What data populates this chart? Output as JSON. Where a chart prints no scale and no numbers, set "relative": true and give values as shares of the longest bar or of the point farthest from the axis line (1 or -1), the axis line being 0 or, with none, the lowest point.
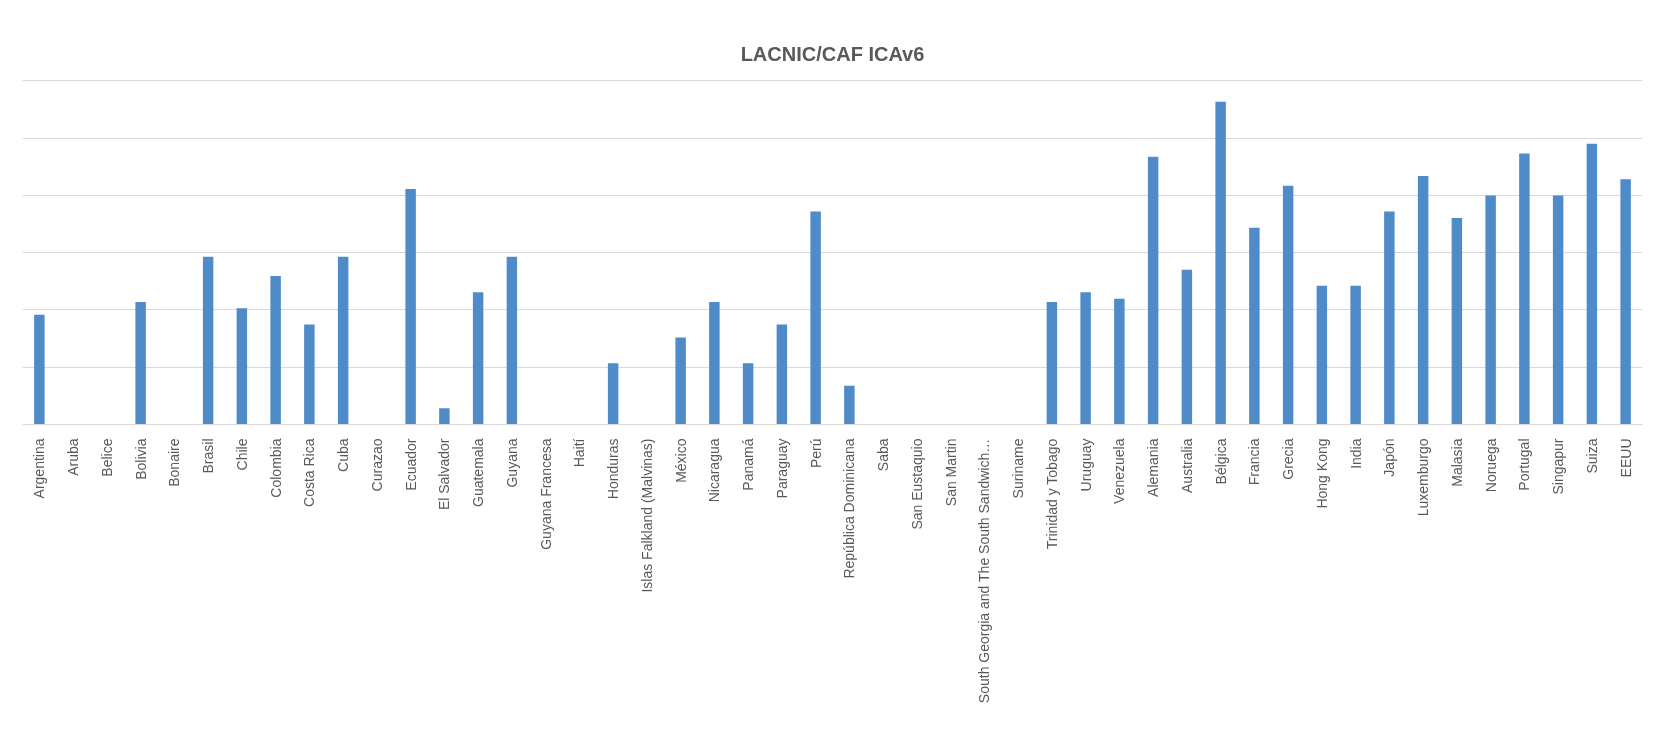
{
  "chart_data": {
    "type": "bar",
    "title": "LACNIC/CAF ICAv6",
    "relative": true,
    "grid": "y",
    "color": "#4f8bc9",
    "categories": [
      "Argentina",
      "Aruba",
      "Belice",
      "Bolivia",
      "Bonaire",
      "Brasil",
      "Chile",
      "Colombia",
      "Costa Rica",
      "Cuba",
      "Curazao",
      "Ecuador",
      "El Salvador",
      "Guatemala",
      "Guyana",
      "Guyana Francesa",
      "Haití",
      "Honduras",
      "Islas Falkland (Malvinas)",
      "México",
      "Nicaragua",
      "Panamá",
      "Paraguay",
      "Perú",
      "República Dominicana",
      "Saba",
      "San Eustaquio",
      "San Martin",
      "South Georgia and The South Sandwich…",
      "Suriname",
      "Trinidad y Tobago",
      "Uruguay",
      "Venezuela",
      "Alemania",
      "Australia",
      "Bélgica",
      "Francia",
      "Grecia",
      "Hong Kong",
      "India",
      "Japón",
      "Luxemburgo",
      "Malasia",
      "Noruega",
      "Portugal",
      "Singapur",
      "Suiza",
      "EEUU"
    ],
    "values": [
      0.34,
      null,
      null,
      0.38,
      null,
      0.52,
      0.36,
      0.46,
      0.31,
      0.52,
      null,
      0.73,
      0.05,
      0.41,
      0.52,
      null,
      null,
      0.19,
      null,
      0.27,
      0.38,
      0.19,
      0.31,
      0.66,
      0.12,
      null,
      null,
      null,
      null,
      null,
      0.38,
      0.41,
      0.39,
      0.83,
      0.48,
      1,
      0.61,
      0.74,
      0.43,
      0.43,
      0.66,
      0.77,
      0.64,
      0.71,
      0.84,
      0.71,
      0.87,
      0.76
    ]
  }
}
